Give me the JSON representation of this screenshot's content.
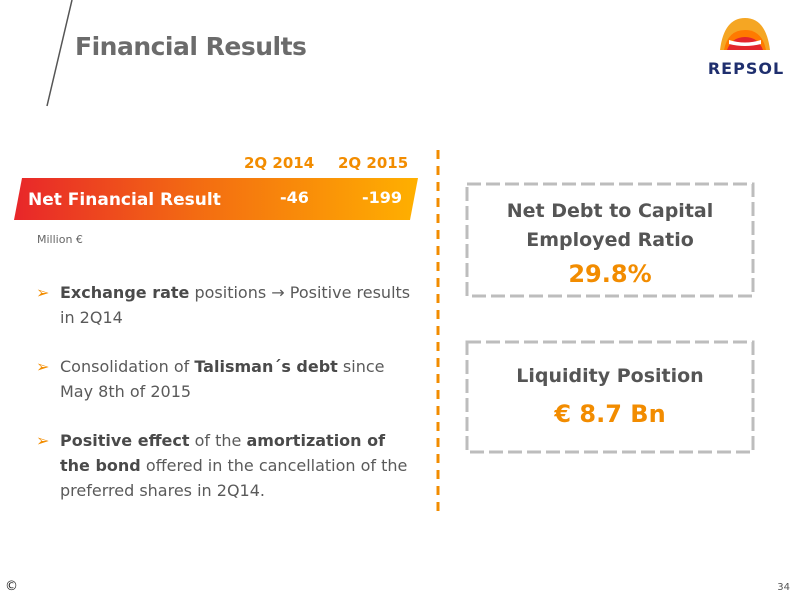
{
  "header": {
    "title": "Financial Results",
    "brand": "REPSOL"
  },
  "table": {
    "col1": "2Q 2014",
    "col2": "2Q 2015",
    "row_label": "Net Financial Result",
    "val1": "-46",
    "val2": "-199",
    "unit": "Million €"
  },
  "bullets": [
    {
      "bold1": "Exchange rate",
      "text1": " positions ",
      "arrow": "→",
      "text2": " Positive results in 2Q14"
    },
    {
      "text1": "Consolidation of ",
      "bold1": "Talisman´s debt",
      "text2": " since May 8th of 2015"
    },
    {
      "bold1": "Positive effect",
      "text1": " of the ",
      "bold2": "amortization of the bond",
      "text2": " offered in the cancellation of the preferred shares in 2Q14."
    }
  ],
  "boxes": {
    "debt": {
      "line1": "Net Debt to Capital",
      "line2": "Employed Ratio",
      "value": "29.8%"
    },
    "liquidity": {
      "line1": "Liquidity Position",
      "value": "€ 8.7 Bn"
    }
  },
  "footer": {
    "copyright": "©",
    "page": "34"
  },
  "colors": {
    "accent": "#f28c00",
    "band_start": "#e8262a",
    "band_end": "#ffb000",
    "brand_blue": "#1f2f6e"
  }
}
